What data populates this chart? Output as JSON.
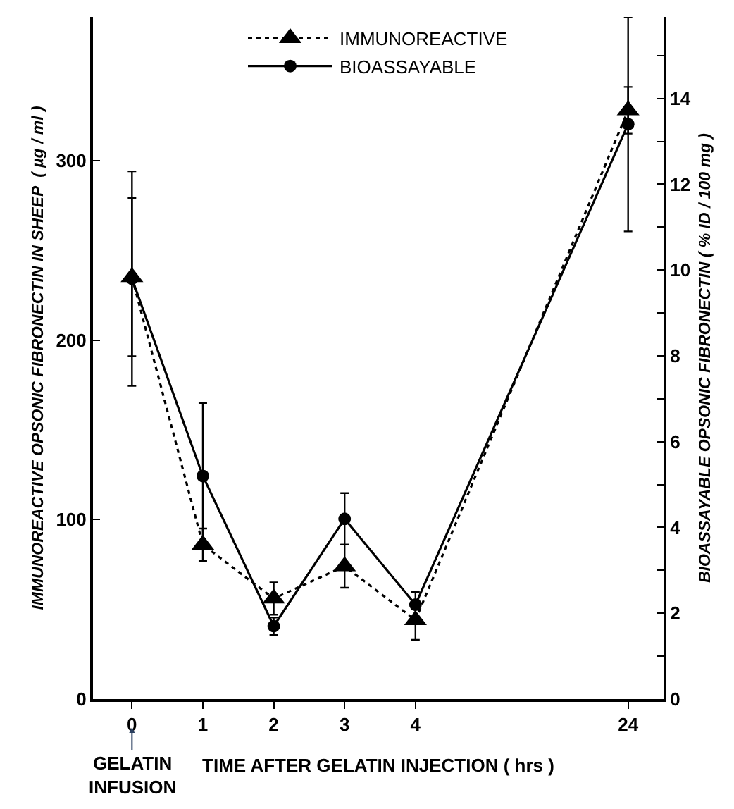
{
  "chart_data": {
    "type": "line",
    "xlabel": "TIME AFTER GELATIN INJECTION ( hrs )",
    "ylabel": "IMMUNOREACTIVE OPSONIC FIBRONECTIN IN SHEEP  ( µg / ml )",
    "y2label": "BIOASSAYABLE OPSONIC FIBRONECTIN ( % ID / 100 mg )",
    "categories": [
      "0",
      "1",
      "2",
      "3",
      "4",
      null,
      null,
      "24"
    ],
    "series": [
      {
        "name": "IMMUNOREACTIVE",
        "color": "#000000",
        "marker": "triangle",
        "line_style": "dotted",
        "values": [
          235,
          86,
          56,
          74,
          44,
          null,
          null,
          328
        ],
        "errors": [
          44,
          9,
          9,
          12,
          11,
          null,
          null,
          13
        ]
      },
      {
        "name": "BIOASSAYABLE",
        "color": "#000000",
        "marker": "circle",
        "line_style": "solid",
        "axis": "y2",
        "values": [
          9.8,
          5.2,
          1.7,
          4.2,
          2.2,
          null,
          null,
          13.4
        ],
        "errors": [
          2.5,
          1.7,
          0.2,
          0.6,
          0.3,
          null,
          null,
          2.5
        ]
      }
    ],
    "ylim": [
      0,
      380
    ],
    "yticks": [
      0,
      100,
      200,
      300
    ],
    "y2lim": [
      0,
      15.9
    ],
    "y2ticks": [
      0,
      {
        "value": 1,
        "label": null
      },
      2,
      {
        "value": 3,
        "label": null
      },
      4,
      {
        "value": 5,
        "label": null
      },
      6,
      {
        "value": 7,
        "label": null
      },
      8,
      {
        "value": 9,
        "label": null
      },
      10,
      {
        "value": 11,
        "label": null
      },
      12,
      {
        "value": 13,
        "label": null
      },
      14,
      {
        "value": 15,
        "label": null
      }
    ],
    "annotations": [
      {
        "text": "GELATIN\nINFUSION",
        "x": "0"
      }
    ],
    "legend": "top"
  }
}
